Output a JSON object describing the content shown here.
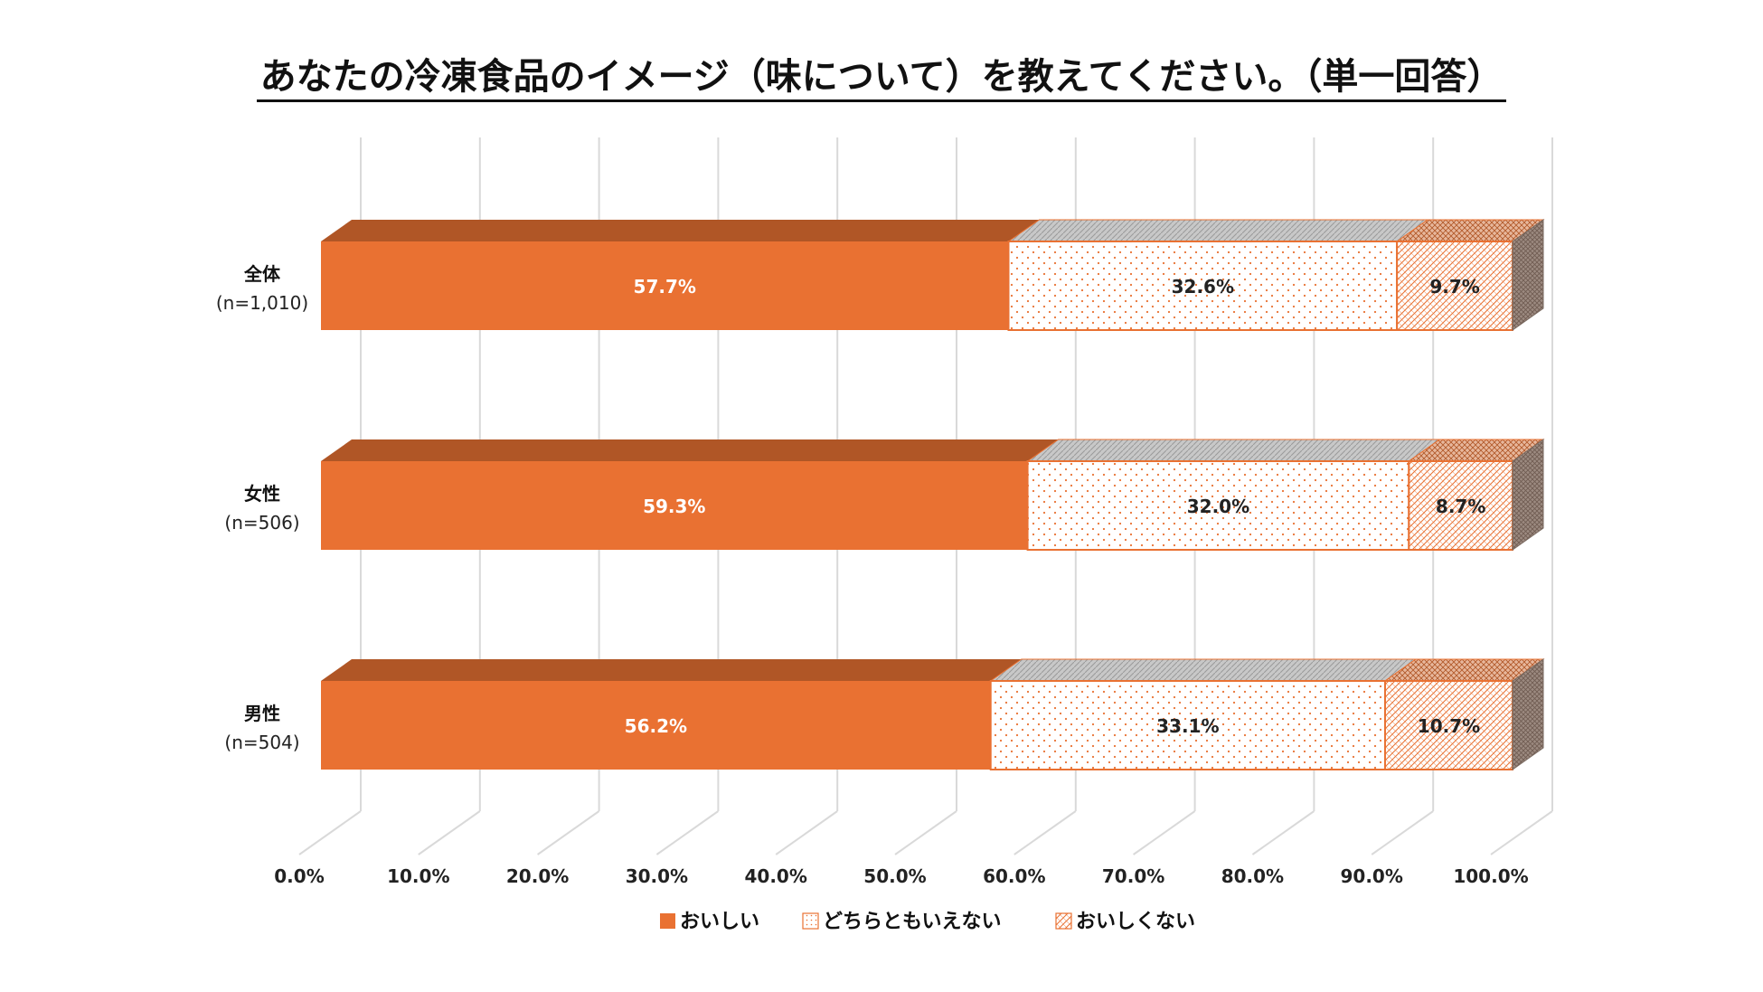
{
  "chart_data": {
    "type": "bar",
    "stacked": true,
    "orientation": "horizontal",
    "title": "あなたの冷凍食品のイメージ（味について）を教えてください。（単一回答）",
    "categories": [
      {
        "label": "全体",
        "n": "(n=1,010)"
      },
      {
        "label": "女性",
        "n": "(n=506)"
      },
      {
        "label": "男性",
        "n": "(n=504)"
      }
    ],
    "series": [
      {
        "name": "おいしい",
        "values": [
          57.7,
          59.3,
          56.2
        ],
        "labels": [
          "57.7%",
          "59.3%",
          "56.2%"
        ],
        "pattern": "solid"
      },
      {
        "name": "どちらともいえない",
        "values": [
          32.6,
          32.0,
          33.1
        ],
        "labels": [
          "32.6%",
          "32.0%",
          "33.1%"
        ],
        "pattern": "dots"
      },
      {
        "name": "おいしくない",
        "values": [
          9.7,
          8.7,
          10.7
        ],
        "labels": [
          "9.7%",
          "8.7%",
          "10.7%"
        ],
        "pattern": "hatch"
      }
    ],
    "xlim": [
      0,
      100
    ],
    "ticks": [
      "0.0%",
      "10.0%",
      "20.0%",
      "30.0%",
      "40.0%",
      "50.0%",
      "60.0%",
      "70.0%",
      "80.0%",
      "90.0%",
      "100.0%"
    ],
    "grid": true,
    "legend": "bottom",
    "colors": {
      "accent": "#E97132",
      "accent_dark": "#B05626",
      "outline": "#E97132",
      "grid": "#D9D9D9",
      "top_face": "#C8C8C8",
      "label_light": "#FFFFFF",
      "label_dark": "#222222"
    }
  }
}
